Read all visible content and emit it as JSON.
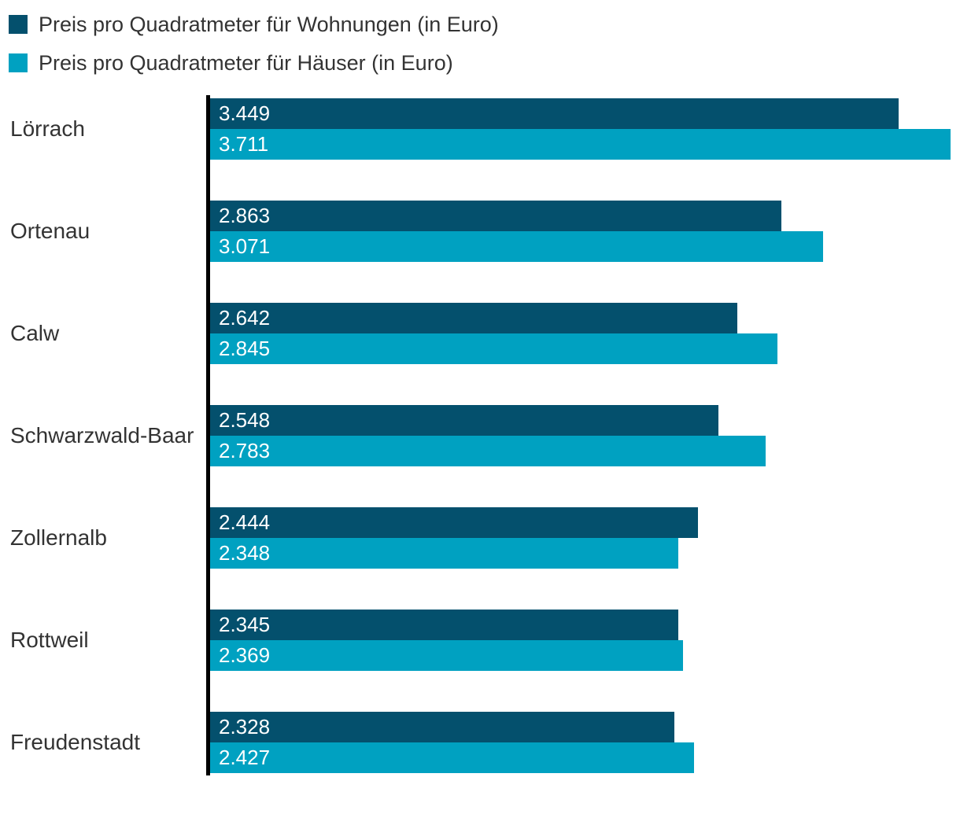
{
  "legend": {
    "items": [
      {
        "label": "Preis pro Quadratmeter für Wohnungen (in Euro)",
        "color": "#04506D"
      },
      {
        "label": "Preis pro Quadratmeter für Häuser (in Euro)",
        "color": "#00A1C1"
      }
    ]
  },
  "chart_data": {
    "type": "bar",
    "orientation": "horizontal",
    "title": "",
    "xlabel": "",
    "ylabel": "",
    "grid": false,
    "legend_position": "top-left",
    "xlim": [
      0,
      3711
    ],
    "categories": [
      "Lörrach",
      "Ortenau",
      "Calw",
      "Schwarzwald-Baar",
      "Zollernalb",
      "Rottweil",
      "Freudenstadt"
    ],
    "series": [
      {
        "name": "Preis pro Quadratmeter für Wohnungen (in Euro)",
        "color": "#04506D",
        "values": [
          3449,
          2863,
          2642,
          2548,
          2444,
          2345,
          2328
        ],
        "value_labels": [
          "3.449",
          "2.863",
          "2.642",
          "2.548",
          "2.444",
          "2.345",
          "2.328"
        ]
      },
      {
        "name": "Preis pro Quadratmeter für Häuser (in Euro)",
        "color": "#00A1C1",
        "values": [
          3711,
          3071,
          2845,
          2783,
          2348,
          2369,
          2427
        ],
        "value_labels": [
          "3.711",
          "3.071",
          "2.845",
          "2.783",
          "2.348",
          "2.369",
          "2.427"
        ]
      }
    ],
    "value_label_position": "inside-left",
    "axis_line_color": "#000000",
    "label_text_color": "#333333"
  }
}
